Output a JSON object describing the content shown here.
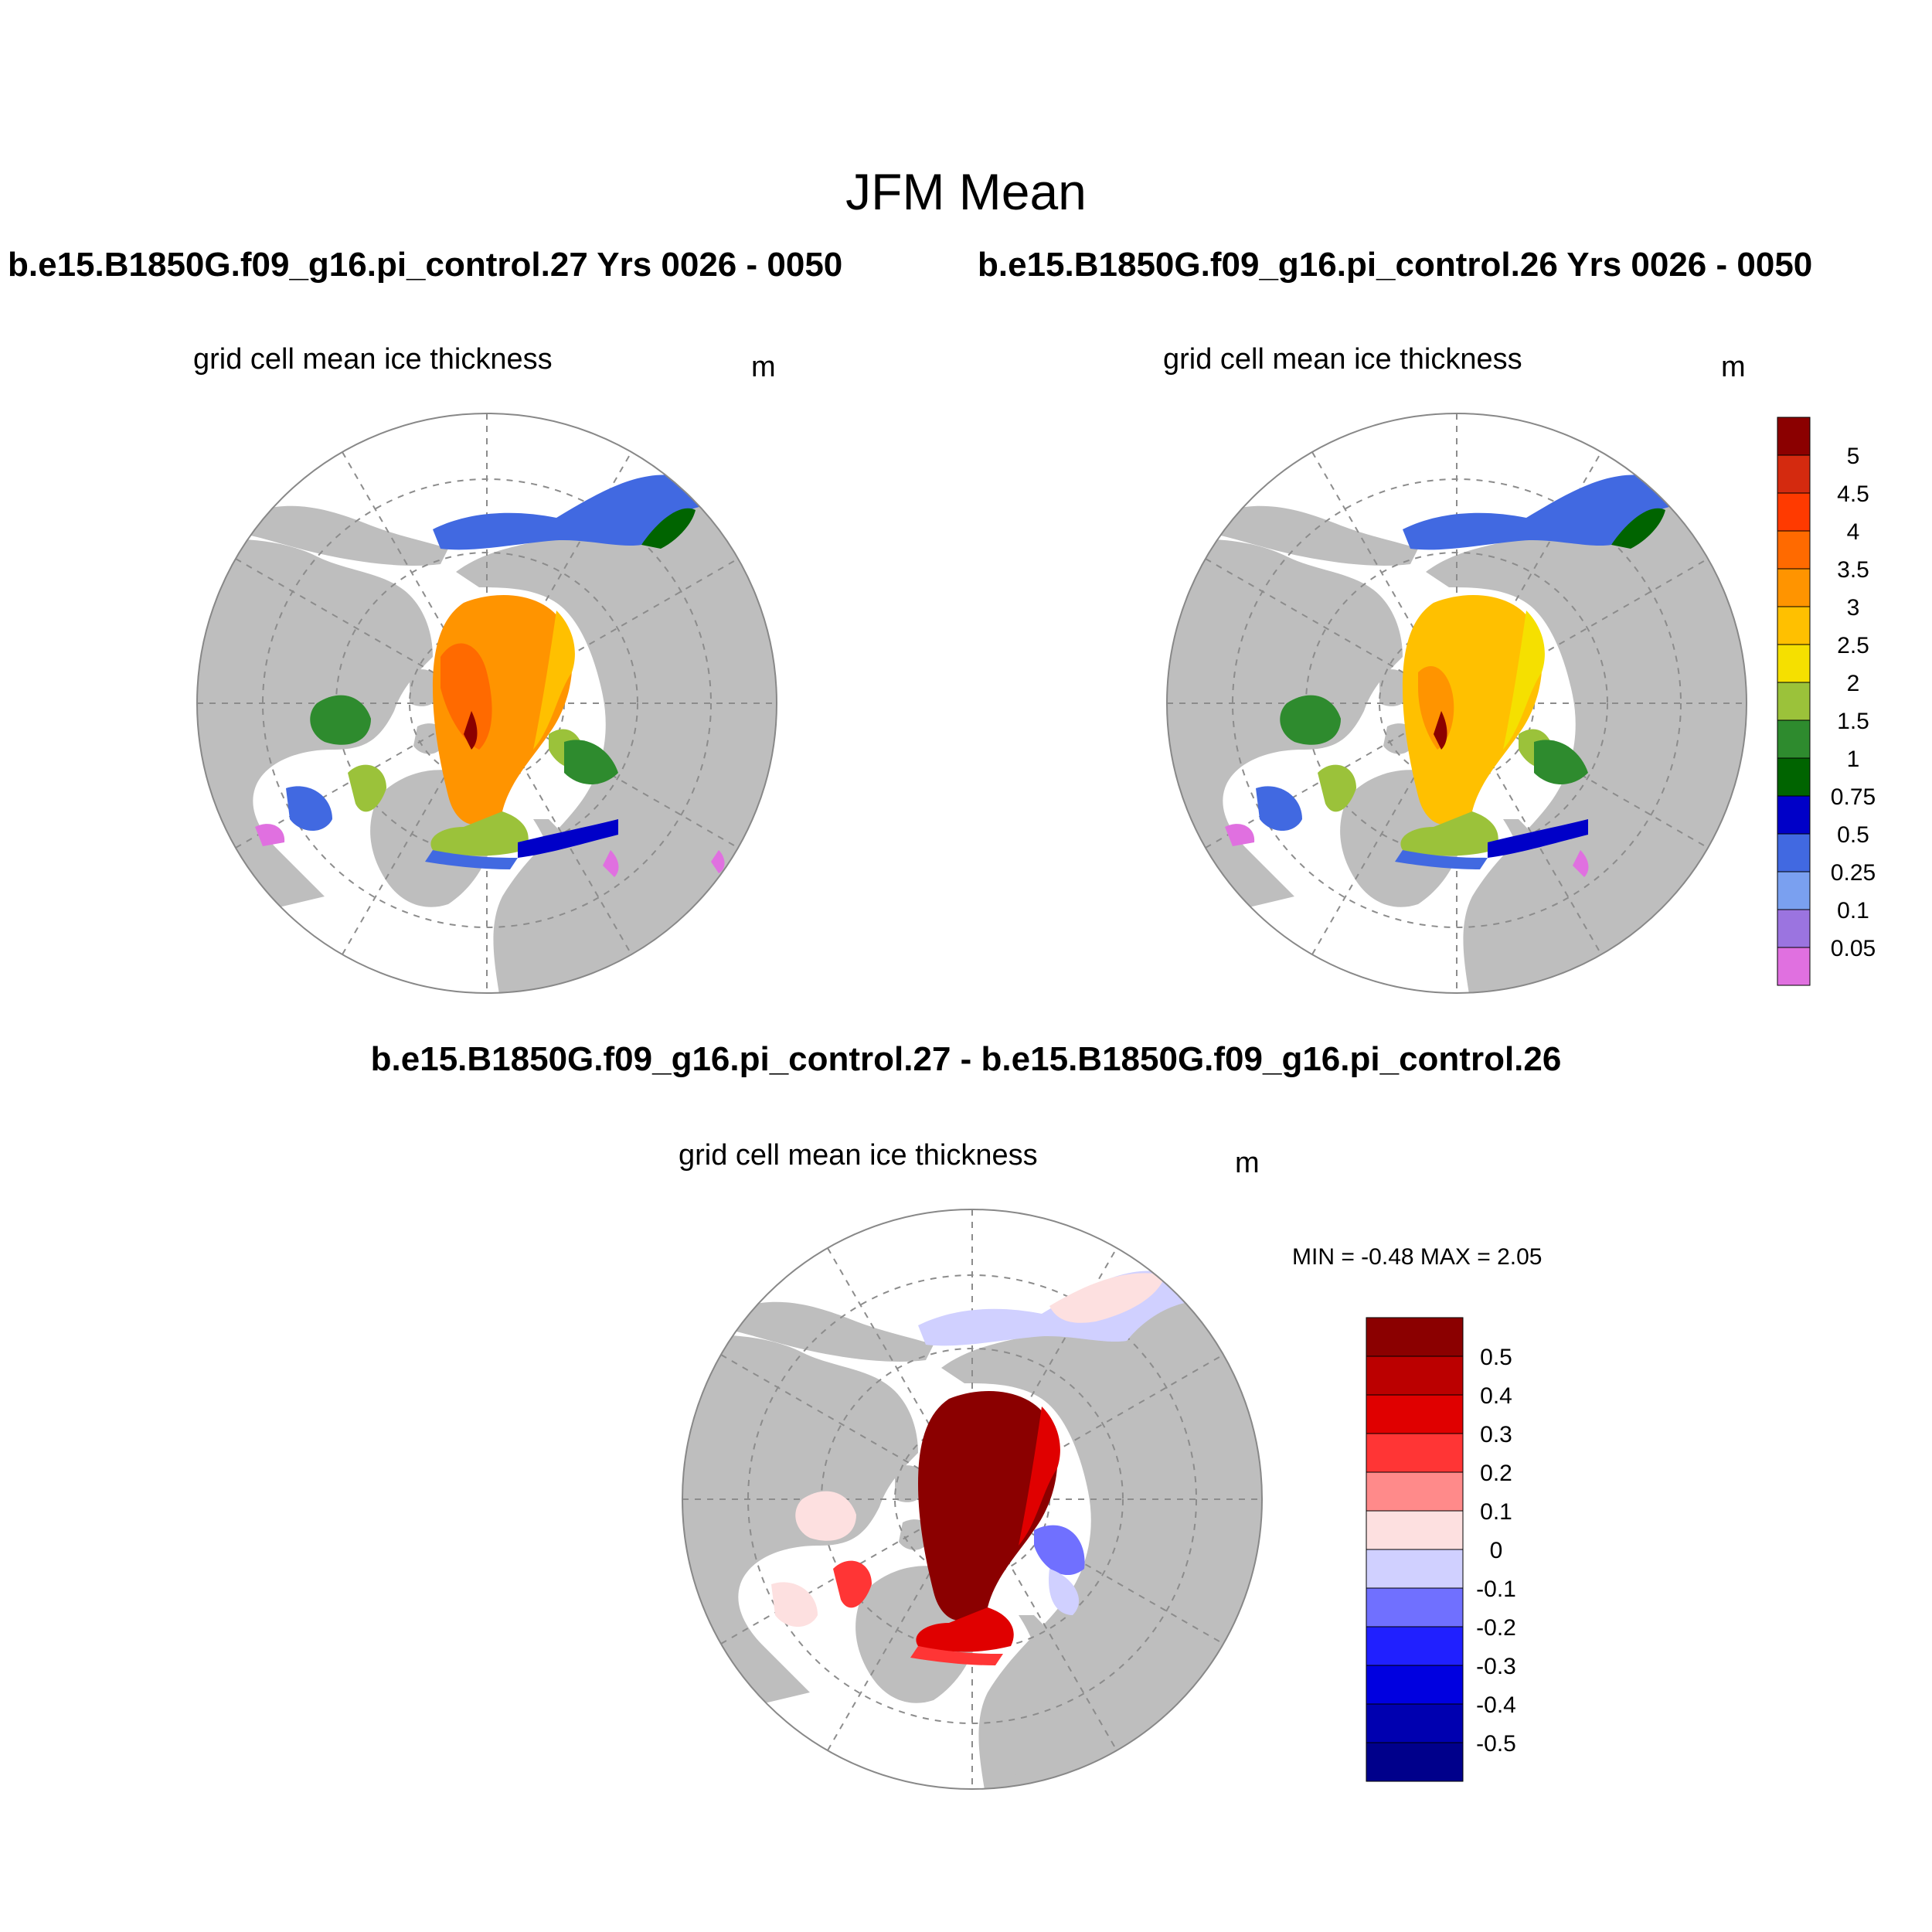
{
  "header": {
    "main_title": "JFM Mean",
    "left_run_title": "b.e15.B1850G.f09_g16.pi_control.27  Yrs 0026 - 0050",
    "right_run_title": "b.e15.B1850G.f09_g16.pi_control.26  Yrs 0026 - 0050",
    "diff_title": "b.e15.B1850G.f09_g16.pi_control.27 - b.e15.B1850G.f09_g16.pi_control.26"
  },
  "panels": {
    "left": {
      "variable": "grid cell mean ice thickness",
      "units": "m"
    },
    "right": {
      "variable": "grid cell mean ice thickness",
      "units": "m"
    },
    "diff": {
      "variable": "grid cell mean ice thickness",
      "units": "m",
      "min_max": "MIN =  -0.48 MAX =   2.05"
    }
  },
  "colors": {
    "land": "#bebebe",
    "ocean": "#ffffff",
    "grid": "#8c8c8c"
  },
  "thickness_colorbar": {
    "labels": [
      "5",
      "4.5",
      "4",
      "3.5",
      "3",
      "2.5",
      "2",
      "1.5",
      "1",
      "0.75",
      "0.5",
      "0.25",
      "0.1",
      "0.05"
    ],
    "colors": [
      "#8b0000",
      "#d42a0f",
      "#ff3a00",
      "#ff6a00",
      "#ff9400",
      "#ffc000",
      "#f5e000",
      "#9bc23a",
      "#2e8b2e",
      "#006400",
      "#0000c8",
      "#4169e1",
      "#7aa0f0",
      "#9b74e0",
      "#e070e0"
    ]
  },
  "diff_colorbar": {
    "labels": [
      "0.5",
      "0.4",
      "0.3",
      "0.2",
      "0.1",
      "0",
      "-0.1",
      "-0.2",
      "-0.3",
      "-0.4",
      "-0.5"
    ],
    "colors": [
      "#8b0000",
      "#bb0000",
      "#e00000",
      "#ff3535",
      "#ff8a8a",
      "#fde0e0",
      "#d0d0ff",
      "#7070ff",
      "#2020ff",
      "#0000e0",
      "#0000b0",
      "#00008b"
    ]
  }
}
